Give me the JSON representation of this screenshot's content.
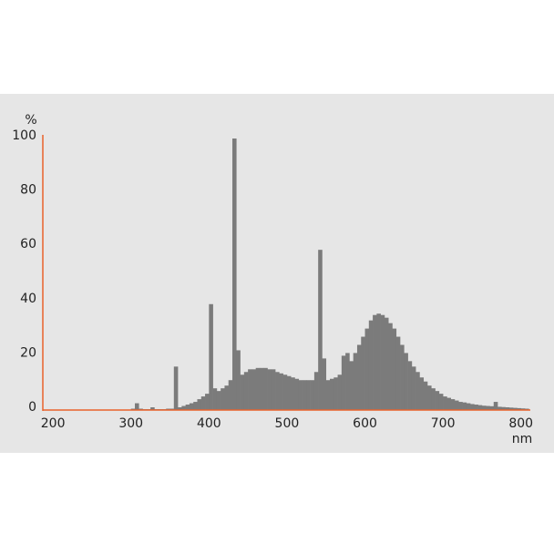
{
  "chart_data": {
    "type": "histogram",
    "x_label": "nm",
    "y_label": "%",
    "bins": [
      300,
      305,
      310,
      315,
      320,
      325,
      330,
      335,
      340,
      345,
      350,
      355,
      360,
      365,
      370,
      375,
      380,
      385,
      390,
      395,
      400,
      405,
      410,
      415,
      420,
      425,
      430,
      435,
      440,
      445,
      450,
      455,
      460,
      465,
      470,
      475,
      480,
      485,
      490,
      495,
      500,
      505,
      510,
      515,
      520,
      525,
      530,
      535,
      540,
      545,
      550,
      555,
      560,
      565,
      570,
      575,
      580,
      585,
      590,
      595,
      600,
      605,
      610,
      615,
      620,
      625,
      630,
      635,
      640,
      645,
      650,
      655,
      660,
      665,
      670,
      675,
      680,
      685,
      690,
      695,
      700,
      705,
      710,
      715,
      720,
      725,
      730,
      735,
      740,
      745,
      750,
      755,
      760,
      765,
      770,
      775,
      780,
      785,
      790,
      795,
      800,
      805,
      810
    ],
    "values": [
      0.5,
      2.5,
      0.5,
      0.3,
      0.3,
      1,
      0.3,
      0.3,
      0.3,
      0.5,
      0.5,
      16,
      1,
      1.5,
      2,
      2.5,
      3,
      4,
      5,
      6,
      39,
      8,
      7,
      8,
      9,
      11,
      100,
      22,
      13,
      14,
      15,
      15,
      15.5,
      15.5,
      15.5,
      15,
      15,
      14,
      13.5,
      13,
      12.5,
      12,
      11.5,
      11,
      11,
      11,
      11,
      14,
      59,
      19,
      11,
      11.5,
      12,
      13,
      20,
      21,
      18,
      21,
      24,
      27,
      30,
      33,
      35,
      35.5,
      35,
      34,
      32,
      30,
      27,
      24,
      21,
      18,
      16,
      14,
      12,
      10.5,
      9,
      8,
      7,
      6,
      5,
      4.5,
      4,
      3.5,
      3,
      2.8,
      2.5,
      2.2,
      2,
      1.8,
      1.6,
      1.5,
      1.4,
      3,
      1.2,
      1.1,
      1,
      0.9,
      0.8,
      0.7,
      0.6,
      0.5
    ],
    "color": "#7b7b7b",
    "axis_color": "#e8622c",
    "xlim": [
      187,
      812
    ],
    "xticks": [
      200,
      300,
      400,
      500,
      600,
      700,
      800
    ],
    "ylim": [
      0,
      100
    ],
    "yticks": [
      0,
      20,
      40,
      60,
      80,
      100
    ],
    "grid": false
  }
}
